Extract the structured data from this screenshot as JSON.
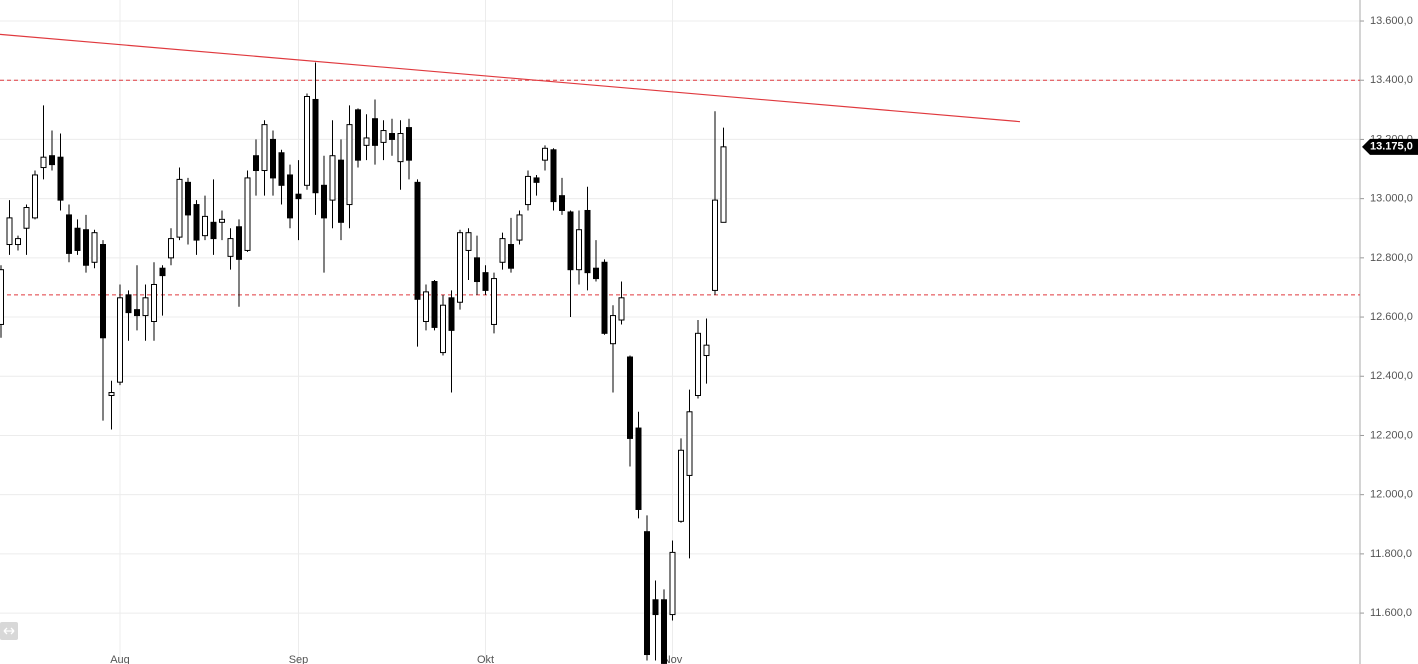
{
  "chart_data": {
    "type": "candlestick",
    "categories": [
      null,
      null,
      null,
      null,
      null,
      null,
      null,
      null,
      null,
      null,
      null,
      null,
      null,
      null,
      "Aug",
      null,
      null,
      null,
      null,
      null,
      null,
      null,
      null,
      null,
      null,
      null,
      null,
      null,
      null,
      null,
      null,
      null,
      null,
      null,
      null,
      "Sep",
      null,
      null,
      null,
      null,
      null,
      null,
      null,
      null,
      null,
      null,
      null,
      null,
      null,
      null,
      null,
      null,
      null,
      null,
      null,
      null,
      null,
      "Okt",
      null,
      null,
      null,
      null,
      null,
      null,
      null,
      null,
      null,
      null,
      null,
      null,
      null,
      null,
      null,
      null,
      null,
      null,
      null,
      null,
      null,
      "Nov",
      null,
      null,
      null,
      null,
      null,
      null
    ],
    "open": [
      12575,
      12845,
      12845,
      12900,
      12935,
      13105,
      13145,
      13140,
      12945,
      12900,
      12895,
      12785,
      12845,
      12335,
      12380,
      12675,
      12625,
      12605,
      12585,
      12765,
      12800,
      12870,
      13055,
      12980,
      12875,
      12920,
      12920,
      12805,
      12905,
      12825,
      13145,
      13095,
      13200,
      13155,
      13080,
      13015,
      13045,
      13335,
      13045,
      12995,
      13130,
      12980,
      13300,
      13180,
      13270,
      13190,
      13220,
      13125,
      13240,
      13055,
      12585,
      12720,
      12480,
      12665,
      12650,
      12825,
      12800,
      12750,
      12575,
      12785,
      12845,
      12860,
      12980,
      13070,
      13130,
      13165,
      13010,
      12955,
      12760,
      12960,
      12765,
      12785,
      12510,
      12590,
      12465,
      12225,
      11875,
      11645,
      11645,
      11595,
      11910,
      12065,
      12335,
      12470,
      12690,
      12920
    ],
    "high": [
      12775,
      12995,
      12875,
      12980,
      13095,
      13315,
      13230,
      13220,
      12980,
      12930,
      12945,
      12895,
      12860,
      12385,
      12710,
      12690,
      12775,
      12710,
      12785,
      12775,
      12900,
      13105,
      13070,
      12995,
      13010,
      13065,
      12960,
      12900,
      12930,
      13095,
      13200,
      13265,
      13230,
      13165,
      13115,
      13130,
      13355,
      13460,
      13145,
      13265,
      13200,
      13315,
      13305,
      13285,
      13335,
      13265,
      13270,
      13265,
      13270,
      13065,
      12710,
      12725,
      12675,
      12690,
      12895,
      12900,
      12875,
      12775,
      12750,
      12885,
      12935,
      12960,
      13095,
      13080,
      13180,
      13170,
      13070,
      12960,
      12960,
      13040,
      12860,
      12795,
      12640,
      12720,
      12470,
      12280,
      11930,
      11710,
      11680,
      11845,
      12190,
      12355,
      12590,
      12595,
      13295,
      13240
    ],
    "low": [
      12530,
      12810,
      12825,
      12810,
      12930,
      13065,
      13095,
      12960,
      12785,
      12810,
      12750,
      12765,
      12250,
      12220,
      12370,
      12520,
      12555,
      12520,
      12520,
      12605,
      12775,
      12860,
      12845,
      12810,
      12860,
      12810,
      12860,
      12760,
      12635,
      12820,
      13010,
      13010,
      13010,
      12980,
      12900,
      12860,
      13030,
      12945,
      12750,
      12900,
      12860,
      12900,
      13105,
      13130,
      13115,
      13130,
      13145,
      13030,
      13065,
      12500,
      12555,
      12555,
      12470,
      12345,
      12625,
      12725,
      12675,
      12675,
      12545,
      12760,
      12750,
      12845,
      12960,
      13010,
      13095,
      12960,
      12945,
      12600,
      12710,
      12690,
      12720,
      12540,
      12345,
      12575,
      12095,
      11920,
      11440,
      11440,
      11410,
      11575,
      11905,
      11785,
      12325,
      12375,
      12675,
      12920
    ],
    "close": [
      12760,
      12935,
      12865,
      12970,
      13080,
      13140,
      13115,
      12995,
      12815,
      12825,
      12775,
      12885,
      12530,
      12345,
      12665,
      12615,
      12605,
      12665,
      12710,
      12740,
      12865,
      13065,
      12945,
      12860,
      12940,
      12865,
      12930,
      12865,
      12795,
      13070,
      13095,
      13250,
      13070,
      13045,
      12935,
      13000,
      13345,
      13020,
      12935,
      13145,
      12920,
      13250,
      13130,
      13205,
      13180,
      13230,
      13200,
      13220,
      13130,
      12660,
      12685,
      12565,
      12640,
      12555,
      12885,
      12885,
      12720,
      12690,
      12730,
      12865,
      12765,
      12945,
      13075,
      13055,
      13170,
      12990,
      12960,
      12760,
      12895,
      12750,
      12730,
      12545,
      12605,
      12665,
      12190,
      11950,
      11460,
      11595,
      11430,
      11805,
      12150,
      12280,
      12545,
      12505,
      12995,
      13175
    ],
    "up_color": "#ffffff",
    "down_color": "#000000",
    "ylim": [
      11428,
      13671
    ],
    "yticks": [
      {
        "value": 11600,
        "label": "11.600,0"
      },
      {
        "value": 11800,
        "label": "11.800,0"
      },
      {
        "value": 12000,
        "label": "12.000,0"
      },
      {
        "value": 12200,
        "label": "12.200,0"
      },
      {
        "value": 12400,
        "label": "12.400,0"
      },
      {
        "value": 12600,
        "label": "12.600,0"
      },
      {
        "value": 12800,
        "label": "12.800,0"
      },
      {
        "value": 13000,
        "label": "13.000,0"
      },
      {
        "value": 13200,
        "label": "13.200,0"
      },
      {
        "value": 13400,
        "label": "13.400,0"
      },
      {
        "value": 13600,
        "label": "13.600,0"
      }
    ],
    "grid": true,
    "hlines": [
      13400,
      12675
    ],
    "hline_color": "#e0393e",
    "trendline": {
      "start": 13555,
      "end": 13260,
      "color": "#e0393e"
    },
    "last_price": {
      "value": 13175,
      "label": "13.175,0"
    }
  }
}
